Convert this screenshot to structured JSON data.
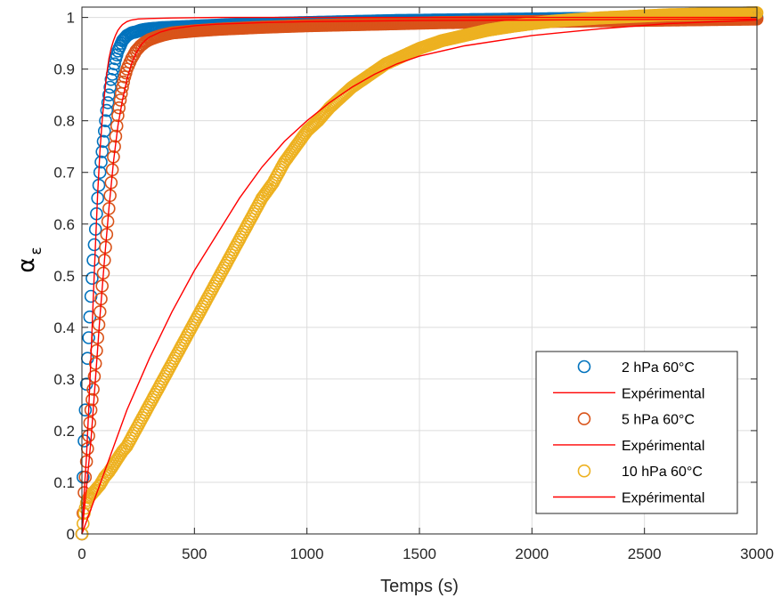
{
  "chart_data": {
    "type": "scatter",
    "xlabel": "Temps (s)",
    "ylabel_symbol": "α",
    "ylabel_subscript": "ε",
    "xlim": [
      0,
      3000
    ],
    "ylim": [
      0,
      1.02
    ],
    "x_ticks": [
      "0",
      "500",
      "1000",
      "1500",
      "2000",
      "2500",
      "3000"
    ],
    "y_ticks": [
      "0",
      "0.1",
      "0.2",
      "0.3",
      "0.4",
      "0.5",
      "0.6",
      "0.7",
      "0.8",
      "0.9",
      "1"
    ],
    "grid": true,
    "legend_position": "bottom-right",
    "series": [
      {
        "name": "2 hPa 60°C",
        "kind": "markers",
        "color": "#0072BD",
        "x": [
          0,
          5,
          10,
          15,
          20,
          25,
          30,
          40,
          50,
          60,
          70,
          80,
          90,
          100,
          110,
          120,
          130,
          140,
          150,
          160,
          170,
          180,
          190,
          200,
          220,
          240,
          260,
          280,
          300,
          350,
          400,
          450,
          500,
          600,
          700,
          800,
          1000,
          1200,
          1400,
          1600,
          1800,
          2000,
          2200,
          2400,
          2600,
          2800,
          3000
        ],
        "y": [
          0.0,
          0.11,
          0.18,
          0.24,
          0.29,
          0.34,
          0.38,
          0.46,
          0.53,
          0.59,
          0.65,
          0.7,
          0.74,
          0.78,
          0.82,
          0.85,
          0.88,
          0.9,
          0.92,
          0.935,
          0.945,
          0.955,
          0.96,
          0.965,
          0.97,
          0.972,
          0.975,
          0.977,
          0.978,
          0.98,
          0.981,
          0.982,
          0.983,
          0.985,
          0.987,
          0.988,
          0.99,
          0.992,
          0.994,
          0.995,
          0.996,
          0.997,
          0.998,
          0.998,
          0.999,
          0.999,
          1.0
        ]
      },
      {
        "name": "Expérimental",
        "kind": "line",
        "color": "#FF0000",
        "x": [
          0,
          10,
          20,
          30,
          40,
          50,
          60,
          70,
          80,
          90,
          100,
          110,
          120,
          130,
          140,
          150,
          160,
          170,
          180,
          200,
          220,
          250,
          300,
          400,
          600,
          1000,
          3000
        ],
        "y": [
          0.0,
          0.08,
          0.15,
          0.24,
          0.34,
          0.45,
          0.56,
          0.66,
          0.74,
          0.8,
          0.85,
          0.89,
          0.92,
          0.94,
          0.955,
          0.966,
          0.975,
          0.981,
          0.986,
          0.992,
          0.995,
          0.997,
          0.998,
          0.999,
          1.0,
          1.0,
          1.0
        ]
      },
      {
        "name": "5 hPa 60°C",
        "kind": "markers",
        "color": "#D95319",
        "x": [
          0,
          10,
          20,
          30,
          40,
          50,
          60,
          70,
          80,
          90,
          100,
          110,
          120,
          130,
          140,
          150,
          160,
          170,
          180,
          190,
          200,
          220,
          240,
          260,
          280,
          300,
          330,
          360,
          400,
          450,
          500,
          600,
          700,
          800,
          1000,
          1200,
          1400,
          1600,
          1800,
          2000,
          2200,
          2400,
          2600,
          2800,
          3000
        ],
        "y": [
          0.0,
          0.08,
          0.14,
          0.19,
          0.24,
          0.28,
          0.33,
          0.38,
          0.43,
          0.48,
          0.53,
          0.58,
          0.63,
          0.68,
          0.73,
          0.77,
          0.81,
          0.84,
          0.865,
          0.885,
          0.9,
          0.92,
          0.935,
          0.945,
          0.952,
          0.957,
          0.962,
          0.966,
          0.97,
          0.972,
          0.974,
          0.977,
          0.979,
          0.981,
          0.984,
          0.986,
          0.988,
          0.99,
          0.991,
          0.992,
          0.993,
          0.994,
          0.995,
          0.996,
          0.997
        ]
      },
      {
        "name": "Expérimental",
        "kind": "line",
        "color": "#FF0000",
        "x": [
          0,
          20,
          40,
          60,
          80,
          100,
          120,
          140,
          160,
          180,
          200,
          220,
          240,
          260,
          280,
          300,
          350,
          400,
          500,
          600,
          800,
          1000,
          1500,
          2000,
          3000
        ],
        "y": [
          0.0,
          0.09,
          0.18,
          0.3,
          0.42,
          0.53,
          0.63,
          0.72,
          0.79,
          0.84,
          0.88,
          0.91,
          0.93,
          0.945,
          0.955,
          0.962,
          0.972,
          0.978,
          0.984,
          0.987,
          0.99,
          0.992,
          0.994,
          0.995,
          0.997
        ]
      },
      {
        "name": "10 hPa 60°C",
        "kind": "markers",
        "color": "#EDB120",
        "x": [
          0,
          10,
          20,
          30,
          40,
          50,
          60,
          80,
          100,
          120,
          150,
          180,
          200,
          250,
          300,
          350,
          400,
          450,
          500,
          550,
          600,
          650,
          700,
          750,
          800,
          850,
          900,
          950,
          1000,
          1050,
          1100,
          1150,
          1200,
          1250,
          1300,
          1350,
          1400,
          1450,
          1500,
          1600,
          1700,
          1800,
          1900,
          2000,
          2100,
          2200,
          2300,
          2400,
          2500,
          2600,
          2700,
          2800,
          2900,
          3000
        ],
        "y": [
          0.0,
          0.04,
          0.06,
          0.07,
          0.075,
          0.08,
          0.085,
          0.095,
          0.11,
          0.12,
          0.14,
          0.16,
          0.17,
          0.21,
          0.25,
          0.29,
          0.33,
          0.37,
          0.41,
          0.45,
          0.49,
          0.53,
          0.57,
          0.61,
          0.65,
          0.68,
          0.72,
          0.75,
          0.78,
          0.8,
          0.825,
          0.845,
          0.865,
          0.88,
          0.895,
          0.91,
          0.92,
          0.93,
          0.94,
          0.955,
          0.965,
          0.975,
          0.982,
          0.988,
          0.993,
          0.996,
          0.999,
          1.001,
          1.003,
          1.005,
          1.006,
          1.007,
          1.008,
          1.009
        ]
      },
      {
        "name": "Expérimental",
        "kind": "line",
        "color": "#FF0000",
        "x": [
          0,
          50,
          100,
          150,
          200,
          250,
          300,
          400,
          500,
          600,
          700,
          800,
          900,
          1000,
          1100,
          1200,
          1300,
          1400,
          1500,
          1700,
          2000,
          2300,
          2600,
          3000
        ],
        "y": [
          0.0,
          0.06,
          0.12,
          0.18,
          0.24,
          0.29,
          0.34,
          0.43,
          0.51,
          0.58,
          0.65,
          0.71,
          0.76,
          0.8,
          0.835,
          0.865,
          0.89,
          0.91,
          0.925,
          0.945,
          0.965,
          0.978,
          0.988,
          0.995
        ]
      }
    ]
  }
}
